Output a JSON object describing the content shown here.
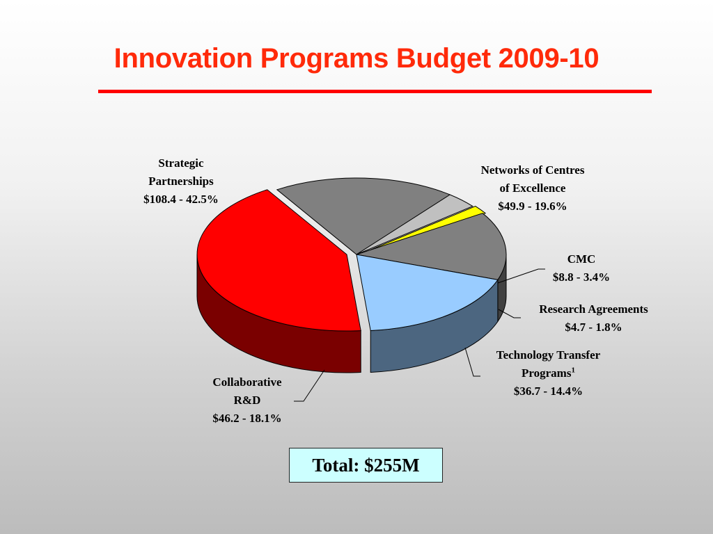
{
  "title": "Innovation Programs Budget 2009-10",
  "total_label": "Total: $255M",
  "chart_data": {
    "type": "pie",
    "style": "3d-exploded",
    "unit": "$M",
    "slices": [
      {
        "key": "strategic",
        "lines": [
          "Strategic",
          "Partnerships"
        ],
        "value_text": "$108.4 - 42.5%",
        "value": 108.4,
        "percent": 42.5,
        "color": "#ff0000",
        "side_color": "#7a0000"
      },
      {
        "key": "nce",
        "lines": [
          "Networks of Centres",
          "of Excellence"
        ],
        "value_text": "$49.9 - 19.6%",
        "value": 49.9,
        "percent": 19.6,
        "color": "#808080",
        "side_color": "#444444"
      },
      {
        "key": "cmc",
        "lines": [
          "CMC"
        ],
        "value_text": "$8.8 - 3.4%",
        "value": 8.8,
        "percent": 3.4,
        "color": "#c0c0c0",
        "side_color": "#6e6e6e"
      },
      {
        "key": "research",
        "lines": [
          "Research Agreements"
        ],
        "value_text": "$4.7 - 1.8%",
        "value": 4.7,
        "percent": 1.8,
        "color": "#ffff00",
        "side_color": "#808000"
      },
      {
        "key": "tech",
        "lines": [
          "Technology Transfer",
          "Programs"
        ],
        "superscript": "1",
        "value_text": "$36.7 - 14.4%",
        "value": 36.7,
        "percent": 14.4,
        "color": "#808080",
        "side_color": "#404040"
      },
      {
        "key": "collab",
        "lines": [
          "Collaborative",
          "R&D"
        ],
        "value_text": "$46.2 - 18.1%",
        "value": 46.2,
        "percent": 18.1,
        "color": "#99ccff",
        "side_color": "#4c6680"
      }
    ]
  }
}
